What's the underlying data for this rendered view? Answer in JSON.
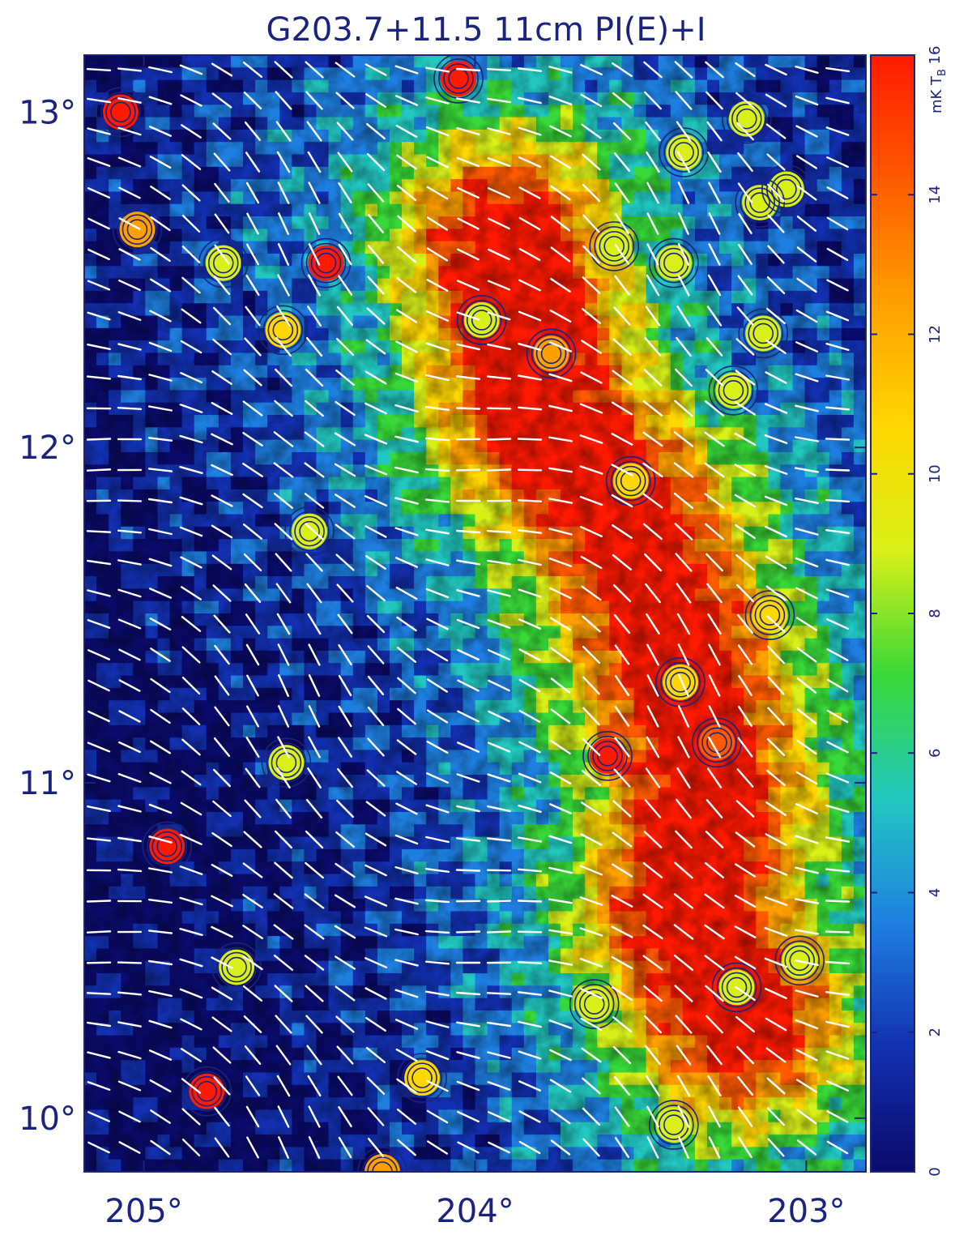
{
  "chart_data": {
    "type": "heatmap",
    "title": "G203.7+11.5 11cm PI(E)+I",
    "x_axis": {
      "ticks": [
        205,
        204,
        203
      ],
      "tick_labels": [
        "205°",
        "204°",
        "203°"
      ],
      "range": [
        205.18,
        202.82
      ]
    },
    "y_axis": {
      "ticks": [
        10,
        11,
        12,
        13
      ],
      "tick_labels": [
        "10°",
        "11°",
        "12°",
        "13°"
      ],
      "range": [
        9.84,
        13.17
      ]
    },
    "colorbar": {
      "label": "mK T",
      "label_subscript": "B",
      "range": [
        0,
        16
      ],
      "ticks": [
        0,
        2,
        4,
        6,
        8,
        10,
        12,
        14,
        16
      ],
      "tick_labels": [
        "0",
        "2",
        "4",
        "6",
        "8",
        "10",
        "12",
        "14",
        "16"
      ],
      "colormap": [
        "#0b0b6b",
        "#1230b0",
        "#1e7fe0",
        "#22c7c0",
        "#38d838",
        "#d8f018",
        "#ffd700",
        "#ffa000",
        "#ff5a00",
        "#ff1a00"
      ]
    },
    "ridge": [
      {
        "x": 203.9,
        "y": 12.6
      },
      {
        "x": 203.8,
        "y": 12.1
      },
      {
        "x": 203.55,
        "y": 11.8
      },
      {
        "x": 203.4,
        "y": 11.4
      },
      {
        "x": 203.3,
        "y": 11.0
      },
      {
        "x": 203.35,
        "y": 10.6
      },
      {
        "x": 203.2,
        "y": 10.3
      }
    ],
    "point_sources": [
      {
        "x": 205.07,
        "y": 13.0,
        "value": 16
      },
      {
        "x": 204.05,
        "y": 13.1,
        "value": 16
      },
      {
        "x": 205.02,
        "y": 12.65,
        "value": 13
      },
      {
        "x": 204.45,
        "y": 12.55,
        "value": 16
      },
      {
        "x": 204.76,
        "y": 12.55,
        "value": 9
      },
      {
        "x": 204.58,
        "y": 12.35,
        "value": 10
      },
      {
        "x": 203.98,
        "y": 12.38,
        "value": 9
      },
      {
        "x": 203.77,
        "y": 12.28,
        "value": 12
      },
      {
        "x": 203.58,
        "y": 12.6,
        "value": 8
      },
      {
        "x": 203.4,
        "y": 12.55,
        "value": 8
      },
      {
        "x": 203.37,
        "y": 12.88,
        "value": 9
      },
      {
        "x": 203.18,
        "y": 12.98,
        "value": 9
      },
      {
        "x": 203.14,
        "y": 12.73,
        "value": 8
      },
      {
        "x": 203.06,
        "y": 12.77,
        "value": 8
      },
      {
        "x": 203.13,
        "y": 12.34,
        "value": 8
      },
      {
        "x": 203.22,
        "y": 12.17,
        "value": 8
      },
      {
        "x": 203.53,
        "y": 11.9,
        "value": 10
      },
      {
        "x": 204.5,
        "y": 11.75,
        "value": 9
      },
      {
        "x": 203.11,
        "y": 11.5,
        "value": 10
      },
      {
        "x": 203.38,
        "y": 11.3,
        "value": 10
      },
      {
        "x": 203.27,
        "y": 11.12,
        "value": 15
      },
      {
        "x": 203.6,
        "y": 11.08,
        "value": 16
      },
      {
        "x": 204.57,
        "y": 11.06,
        "value": 9
      },
      {
        "x": 204.93,
        "y": 10.81,
        "value": 16
      },
      {
        "x": 204.72,
        "y": 10.45,
        "value": 9
      },
      {
        "x": 203.64,
        "y": 10.34,
        "value": 8
      },
      {
        "x": 203.21,
        "y": 10.39,
        "value": 8
      },
      {
        "x": 203.02,
        "y": 10.47,
        "value": 8
      },
      {
        "x": 204.81,
        "y": 10.08,
        "value": 16
      },
      {
        "x": 204.16,
        "y": 10.12,
        "value": 10
      },
      {
        "x": 203.4,
        "y": 9.98,
        "value": 9
      },
      {
        "x": 204.28,
        "y": 9.84,
        "value": 12
      }
    ]
  }
}
